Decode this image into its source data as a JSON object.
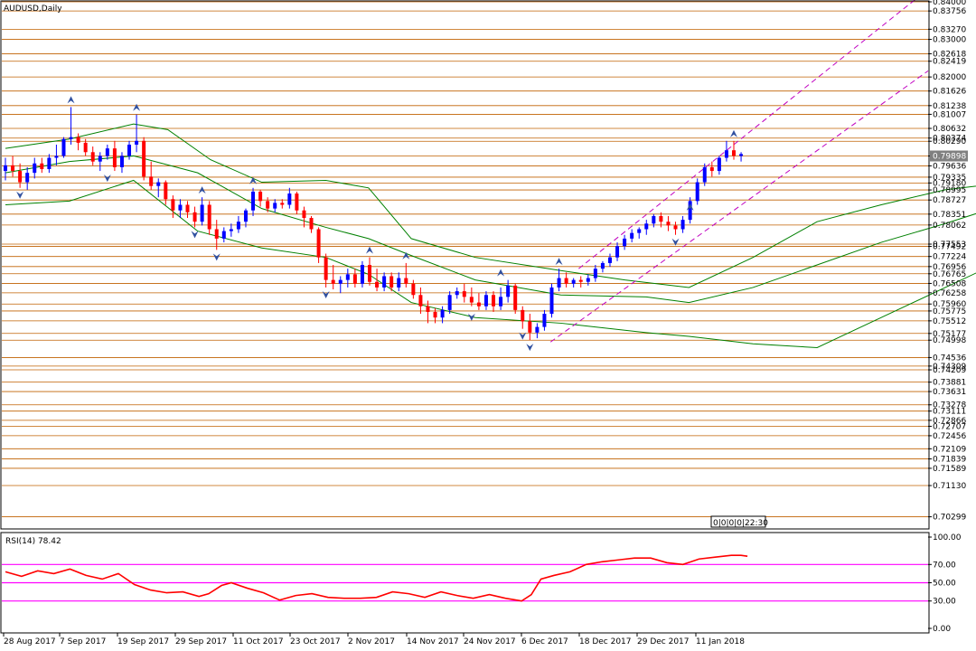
{
  "chart_title": "AUDUSD,Daily",
  "time_box": "0|0|0|0|22:30",
  "chart_data": {
    "type": "candlestick",
    "symbol": "AUDUSD",
    "timeframe": "Daily",
    "price_range": [
      0.7,
      0.84
    ],
    "price_tick_labels": [
      "0.84000",
      "0.83756",
      "0.83270",
      "0.83000",
      "0.82618",
      "0.82419",
      "0.82000",
      "0.81626",
      "0.81238",
      "0.81007",
      "0.80290",
      "0.80632",
      "0.80374",
      "0.79898",
      "0.79636",
      "0.79335",
      "0.79180",
      "0.78995",
      "0.78727",
      "0.78351",
      "0.78062",
      "0.77553",
      "0.77492",
      "0.77224",
      "0.76956",
      "0.76765",
      "0.76508",
      "0.76258",
      "0.75960",
      "0.75775",
      "0.75512",
      "0.75177",
      "0.74998",
      "0.74536",
      "0.74309",
      "0.74209",
      "0.73881",
      "0.73631",
      "0.73278",
      "0.73111",
      "0.72866",
      "0.72707",
      "0.72456",
      "0.72109",
      "0.71839",
      "0.71589",
      "0.71130",
      "0.70299"
    ],
    "current_price": "0.79898",
    "x_tick_labels": [
      "28 Aug 2017",
      "7 Sep 2017",
      "19 Sep 2017",
      "29 Sep 2017",
      "11 Oct 2017",
      "23 Oct 2017",
      "2 Nov 2017",
      "14 Nov 2017",
      "24 Nov 2017",
      "6 Dec 2017",
      "18 Dec 2017",
      "29 Dec 2017",
      "11 Jan 2018"
    ],
    "candles": [
      [
        0.795,
        0.7985,
        0.7925,
        0.7965
      ],
      [
        0.7965,
        0.799,
        0.7935,
        0.795
      ],
      [
        0.795,
        0.797,
        0.7905,
        0.792
      ],
      [
        0.792,
        0.796,
        0.79,
        0.7945
      ],
      [
        0.7945,
        0.7985,
        0.793,
        0.797
      ],
      [
        0.797,
        0.7985,
        0.7945,
        0.7955
      ],
      [
        0.7955,
        0.7995,
        0.7945,
        0.7985
      ],
      [
        0.7985,
        0.802,
        0.7965,
        0.799
      ],
      [
        0.799,
        0.804,
        0.7985,
        0.8035
      ],
      [
        0.8035,
        0.812,
        0.802,
        0.804
      ],
      [
        0.804,
        0.805,
        0.8005,
        0.8025
      ],
      [
        0.8025,
        0.8035,
        0.799,
        0.8
      ],
      [
        0.8,
        0.8015,
        0.7965,
        0.7975
      ],
      [
        0.7975,
        0.8,
        0.795,
        0.799
      ],
      [
        0.799,
        0.802,
        0.798,
        0.801
      ],
      [
        0.801,
        0.803,
        0.795,
        0.796
      ],
      [
        0.796,
        0.8,
        0.7945,
        0.799
      ],
      [
        0.799,
        0.803,
        0.798,
        0.802
      ],
      [
        0.802,
        0.81,
        0.8,
        0.803
      ],
      [
        0.803,
        0.804,
        0.7925,
        0.7935
      ],
      [
        0.7935,
        0.7975,
        0.79,
        0.791
      ],
      [
        0.791,
        0.793,
        0.788,
        0.792
      ],
      [
        0.792,
        0.7925,
        0.786,
        0.7875
      ],
      [
        0.7875,
        0.7885,
        0.7825,
        0.7845
      ],
      [
        0.7845,
        0.7875,
        0.7825,
        0.786
      ],
      [
        0.786,
        0.787,
        0.7825,
        0.784
      ],
      [
        0.784,
        0.7855,
        0.78,
        0.7815
      ],
      [
        0.7815,
        0.788,
        0.7805,
        0.786
      ],
      [
        0.786,
        0.787,
        0.778,
        0.7795
      ],
      [
        0.7795,
        0.782,
        0.774,
        0.777
      ],
      [
        0.777,
        0.78,
        0.776,
        0.779
      ],
      [
        0.779,
        0.781,
        0.7775,
        0.7795
      ],
      [
        0.7795,
        0.783,
        0.7785,
        0.7815
      ],
      [
        0.7815,
        0.785,
        0.78,
        0.7845
      ],
      [
        0.7845,
        0.7905,
        0.783,
        0.7895
      ],
      [
        0.7895,
        0.79,
        0.7855,
        0.787
      ],
      [
        0.787,
        0.788,
        0.784,
        0.785
      ],
      [
        0.785,
        0.7875,
        0.784,
        0.7865
      ],
      [
        0.7865,
        0.7875,
        0.785,
        0.786
      ],
      [
        0.786,
        0.7905,
        0.785,
        0.789
      ],
      [
        0.789,
        0.7895,
        0.7835,
        0.7845
      ],
      [
        0.7845,
        0.7855,
        0.78,
        0.7825
      ],
      [
        0.7825,
        0.783,
        0.7785,
        0.7795
      ],
      [
        0.7795,
        0.78,
        0.7705,
        0.772
      ],
      [
        0.772,
        0.773,
        0.764,
        0.766
      ],
      [
        0.766,
        0.77,
        0.7635,
        0.765
      ],
      [
        0.765,
        0.767,
        0.7625,
        0.766
      ],
      [
        0.766,
        0.769,
        0.764,
        0.7675
      ],
      [
        0.7675,
        0.769,
        0.764,
        0.765
      ],
      [
        0.765,
        0.771,
        0.764,
        0.77
      ],
      [
        0.77,
        0.772,
        0.7645,
        0.7655
      ],
      [
        0.7655,
        0.769,
        0.763,
        0.764
      ],
      [
        0.764,
        0.768,
        0.763,
        0.767
      ],
      [
        0.767,
        0.768,
        0.763,
        0.764
      ],
      [
        0.764,
        0.768,
        0.763,
        0.7665
      ],
      [
        0.7665,
        0.7705,
        0.764,
        0.765
      ],
      [
        0.765,
        0.766,
        0.761,
        0.762
      ],
      [
        0.762,
        0.764,
        0.757,
        0.759
      ],
      [
        0.759,
        0.7605,
        0.7545,
        0.7575
      ],
      [
        0.7575,
        0.7585,
        0.7545,
        0.756
      ],
      [
        0.756,
        0.759,
        0.7545,
        0.758
      ],
      [
        0.758,
        0.763,
        0.757,
        0.762
      ],
      [
        0.762,
        0.764,
        0.761,
        0.763
      ],
      [
        0.763,
        0.765,
        0.76,
        0.7615
      ],
      [
        0.7615,
        0.764,
        0.759,
        0.76
      ],
      [
        0.76,
        0.7625,
        0.758,
        0.759
      ],
      [
        0.759,
        0.763,
        0.758,
        0.762
      ],
      [
        0.762,
        0.763,
        0.7575,
        0.759
      ],
      [
        0.759,
        0.764,
        0.758,
        0.7615
      ],
      [
        0.7615,
        0.766,
        0.76,
        0.7645
      ],
      [
        0.7645,
        0.765,
        0.757,
        0.758
      ],
      [
        0.758,
        0.759,
        0.753,
        0.755
      ],
      [
        0.755,
        0.757,
        0.75,
        0.752
      ],
      [
        0.752,
        0.7545,
        0.7505,
        0.7535
      ],
      [
        0.7535,
        0.758,
        0.7525,
        0.757
      ],
      [
        0.757,
        0.765,
        0.756,
        0.764
      ],
      [
        0.764,
        0.769,
        0.763,
        0.7665
      ],
      [
        0.7665,
        0.768,
        0.764,
        0.765
      ],
      [
        0.765,
        0.7665,
        0.764,
        0.766
      ],
      [
        0.766,
        0.767,
        0.764,
        0.7655
      ],
      [
        0.7655,
        0.7675,
        0.7645,
        0.7665
      ],
      [
        0.7665,
        0.77,
        0.7655,
        0.769
      ],
      [
        0.769,
        0.771,
        0.768,
        0.7705
      ],
      [
        0.7705,
        0.773,
        0.7695,
        0.772
      ],
      [
        0.772,
        0.776,
        0.771,
        0.775
      ],
      [
        0.775,
        0.778,
        0.774,
        0.777
      ],
      [
        0.777,
        0.7795,
        0.776,
        0.7785
      ],
      [
        0.7785,
        0.78,
        0.777,
        0.7795
      ],
      [
        0.7795,
        0.782,
        0.778,
        0.781
      ],
      [
        0.781,
        0.7835,
        0.78,
        0.783
      ],
      [
        0.783,
        0.784,
        0.78,
        0.7815
      ],
      [
        0.7815,
        0.783,
        0.779,
        0.7805
      ],
      [
        0.7805,
        0.7815,
        0.778,
        0.7795
      ],
      [
        0.7795,
        0.783,
        0.7785,
        0.782
      ],
      [
        0.782,
        0.788,
        0.781,
        0.787
      ],
      [
        0.787,
        0.793,
        0.786,
        0.792
      ],
      [
        0.792,
        0.797,
        0.791,
        0.796
      ],
      [
        0.796,
        0.7975,
        0.7935,
        0.795
      ],
      [
        0.795,
        0.799,
        0.794,
        0.7985
      ],
      [
        0.7985,
        0.803,
        0.7975,
        0.8005
      ],
      [
        0.8005,
        0.803,
        0.798,
        0.799
      ],
      [
        0.799,
        0.8,
        0.7975,
        0.7995
      ]
    ],
    "bollinger_bands": {
      "upper": [
        [
          0,
          0.801
        ],
        [
          15,
          0.8035
        ],
        [
          30,
          0.8075
        ],
        [
          38,
          0.806
        ],
        [
          48,
          0.798
        ],
        [
          60,
          0.792
        ],
        [
          75,
          0.7925
        ],
        [
          85,
          0.7905
        ],
        [
          95,
          0.777
        ],
        [
          110,
          0.772
        ],
        [
          130,
          0.7685
        ],
        [
          145,
          0.766
        ],
        [
          160,
          0.764
        ],
        [
          175,
          0.772
        ],
        [
          190,
          0.7815
        ],
        [
          205,
          0.786
        ],
        [
          220,
          0.79
        ],
        [
          235,
          0.792
        ]
      ],
      "middle": [
        [
          0,
          0.7945
        ],
        [
          15,
          0.7975
        ],
        [
          30,
          0.799
        ],
        [
          45,
          0.7945
        ],
        [
          60,
          0.785
        ],
        [
          75,
          0.78
        ],
        [
          85,
          0.777
        ],
        [
          95,
          0.7725
        ],
        [
          110,
          0.766
        ],
        [
          130,
          0.762
        ],
        [
          150,
          0.7615
        ],
        [
          160,
          0.76
        ],
        [
          175,
          0.764
        ],
        [
          190,
          0.77
        ],
        [
          205,
          0.776
        ],
        [
          220,
          0.781
        ],
        [
          235,
          0.7865
        ]
      ],
      "lower": [
        [
          0,
          0.786
        ],
        [
          15,
          0.787
        ],
        [
          30,
          0.7925
        ],
        [
          45,
          0.779
        ],
        [
          60,
          0.7745
        ],
        [
          75,
          0.772
        ],
        [
          85,
          0.7675
        ],
        [
          95,
          0.76
        ],
        [
          110,
          0.756
        ],
        [
          130,
          0.7545
        ],
        [
          150,
          0.752
        ],
        [
          160,
          0.751
        ],
        [
          175,
          0.749
        ],
        [
          190,
          0.748
        ],
        [
          205,
          0.756
        ],
        [
          220,
          0.764
        ],
        [
          235,
          0.772
        ]
      ]
    },
    "rsi": {
      "label": "RSI(14) 78.42",
      "tick_labels": [
        "100.00",
        "70.00",
        "50.00",
        "30.00",
        "0.00"
      ],
      "levels": [
        70,
        50,
        30
      ],
      "values": [
        [
          0,
          62
        ],
        [
          5,
          57
        ],
        [
          10,
          63
        ],
        [
          15,
          60
        ],
        [
          20,
          65
        ],
        [
          25,
          58
        ],
        [
          30,
          54
        ],
        [
          35,
          60
        ],
        [
          40,
          48
        ],
        [
          45,
          42
        ],
        [
          50,
          39
        ],
        [
          55,
          40
        ],
        [
          60,
          35
        ],
        [
          63,
          38
        ],
        [
          67,
          47
        ],
        [
          70,
          50
        ],
        [
          75,
          44
        ],
        [
          80,
          39
        ],
        [
          85,
          31
        ],
        [
          90,
          36
        ],
        [
          95,
          38
        ],
        [
          100,
          34
        ],
        [
          105,
          33
        ],
        [
          110,
          33
        ],
        [
          115,
          34
        ],
        [
          120,
          40
        ],
        [
          125,
          38
        ],
        [
          130,
          34
        ],
        [
          135,
          40
        ],
        [
          140,
          36
        ],
        [
          145,
          33
        ],
        [
          150,
          37
        ],
        [
          155,
          33
        ],
        [
          160,
          30
        ],
        [
          163,
          37
        ],
        [
          166,
          54
        ],
        [
          170,
          58
        ],
        [
          175,
          62
        ],
        [
          180,
          70
        ],
        [
          185,
          73
        ],
        [
          190,
          75
        ],
        [
          195,
          77
        ],
        [
          200,
          77
        ],
        [
          205,
          72
        ],
        [
          210,
          70
        ],
        [
          215,
          76
        ],
        [
          220,
          78
        ],
        [
          225,
          80
        ],
        [
          228,
          80
        ],
        [
          230,
          79
        ]
      ]
    },
    "up_color": "#0000ff",
    "down_color": "#ff0000",
    "band_color": "#008000",
    "channel_color": "#c000c0",
    "grid_color": "#c06000",
    "rsi_color": "#ff0000",
    "rsi_level_color": "#ff00ff"
  }
}
